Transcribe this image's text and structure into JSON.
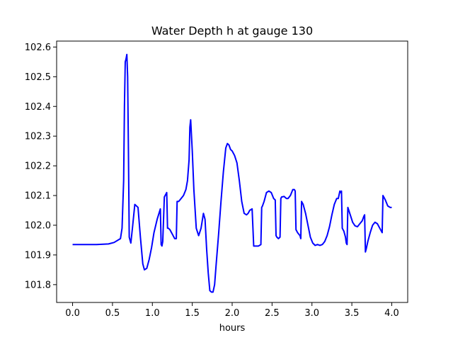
{
  "chart_data": {
    "type": "line",
    "title": "Water Depth h at gauge 130",
    "xlabel": "hours",
    "ylabel": "",
    "xlim": [
      -0.2,
      4.2
    ],
    "ylim": [
      101.74,
      102.62
    ],
    "xticks": [
      0.0,
      0.5,
      1.0,
      1.5,
      2.0,
      2.5,
      3.0,
      3.5,
      4.0
    ],
    "xtick_labels": [
      "0.0",
      "0.5",
      "1.0",
      "1.5",
      "2.0",
      "2.5",
      "3.0",
      "3.5",
      "4.0"
    ],
    "yticks": [
      101.8,
      101.9,
      102.0,
      102.1,
      102.2,
      102.3,
      102.4,
      102.5,
      102.6
    ],
    "ytick_labels": [
      "101.8",
      "101.9",
      "102.0",
      "102.1",
      "102.2",
      "102.3",
      "102.4",
      "102.5",
      "102.6"
    ],
    "grid": false,
    "legend": "none",
    "series": [
      {
        "color": "#0000ff",
        "x": [
          0.0,
          0.3,
          0.45,
          0.52,
          0.6,
          0.62,
          0.64,
          0.65,
          0.66,
          0.67,
          0.68,
          0.69,
          0.7,
          0.71,
          0.73,
          0.75,
          0.78,
          0.82,
          0.85,
          0.88,
          0.9,
          0.93,
          0.96,
          0.99,
          1.02,
          1.06,
          1.1,
          1.11,
          1.12,
          1.13,
          1.15,
          1.18,
          1.19,
          1.2,
          1.22,
          1.25,
          1.28,
          1.3,
          1.31,
          1.33,
          1.36,
          1.39,
          1.42,
          1.44,
          1.46,
          1.47,
          1.48,
          1.5,
          1.52,
          1.55,
          1.58,
          1.61,
          1.64,
          1.66,
          1.68,
          1.7,
          1.72,
          1.74,
          1.76,
          1.78,
          1.8,
          1.83,
          1.86,
          1.89,
          1.92,
          1.94,
          1.96,
          1.98,
          2.0,
          2.03,
          2.06,
          2.09,
          2.12,
          2.15,
          2.18,
          2.2,
          2.22,
          2.25,
          2.27,
          2.29,
          2.3,
          2.33,
          2.36,
          2.37,
          2.38,
          2.4,
          2.43,
          2.46,
          2.49,
          2.52,
          2.54,
          2.55,
          2.56,
          2.58,
          2.6,
          2.61,
          2.62,
          2.65,
          2.68,
          2.7,
          2.73,
          2.76,
          2.78,
          2.79,
          2.8,
          2.82,
          2.85,
          2.86,
          2.87,
          2.89,
          2.92,
          2.95,
          2.98,
          3.01,
          3.04,
          3.07,
          3.1,
          3.13,
          3.16,
          3.19,
          3.22,
          3.25,
          3.28,
          3.31,
          3.33,
          3.35,
          3.36,
          3.37,
          3.38,
          3.4,
          3.42,
          3.43,
          3.44,
          3.45,
          3.48,
          3.51,
          3.54,
          3.57,
          3.6,
          3.63,
          3.65,
          3.66,
          3.67,
          3.68,
          3.7,
          3.73,
          3.76,
          3.79,
          3.82,
          3.85,
          3.88,
          3.89,
          3.9,
          3.92,
          3.95,
          3.98,
          4.0
        ],
        "y": [
          101.935,
          101.935,
          101.937,
          101.942,
          101.955,
          101.99,
          102.15,
          102.4,
          102.55,
          102.56,
          102.575,
          102.5,
          102.25,
          101.96,
          101.94,
          101.99,
          102.07,
          102.06,
          101.96,
          101.87,
          101.85,
          101.855,
          101.885,
          101.925,
          101.975,
          102.02,
          102.055,
          101.935,
          101.93,
          101.945,
          102.095,
          102.11,
          101.99,
          101.99,
          101.985,
          101.97,
          101.955,
          101.955,
          102.08,
          102.08,
          102.09,
          102.1,
          102.12,
          102.15,
          102.22,
          102.33,
          102.355,
          102.25,
          102.12,
          101.99,
          101.965,
          101.99,
          102.04,
          102.02,
          101.92,
          101.84,
          101.78,
          101.775,
          101.775,
          101.8,
          101.87,
          101.97,
          102.08,
          102.18,
          102.26,
          102.275,
          102.27,
          102.255,
          102.25,
          102.235,
          102.21,
          102.15,
          102.08,
          102.04,
          102.035,
          102.04,
          102.05,
          102.055,
          101.93,
          101.93,
          101.93,
          101.93,
          101.935,
          102.06,
          102.065,
          102.08,
          102.11,
          102.115,
          102.11,
          102.09,
          102.085,
          101.965,
          101.96,
          101.955,
          101.96,
          102.09,
          102.095,
          102.097,
          102.09,
          102.09,
          102.1,
          102.12,
          102.12,
          102.115,
          101.985,
          101.975,
          101.965,
          101.955,
          102.08,
          102.07,
          102.04,
          102.0,
          101.96,
          101.94,
          101.932,
          101.935,
          101.932,
          101.935,
          101.945,
          101.965,
          101.995,
          102.035,
          102.07,
          102.09,
          102.09,
          102.115,
          102.11,
          102.115,
          101.99,
          101.98,
          101.96,
          101.94,
          101.935,
          102.06,
          102.035,
          102.01,
          101.998,
          101.995,
          102.005,
          102.015,
          102.03,
          102.035,
          101.91,
          101.92,
          101.945,
          101.975,
          102.0,
          102.01,
          102.005,
          101.99,
          101.975,
          102.1,
          102.095,
          102.085,
          102.065,
          102.06,
          102.06
        ]
      }
    ]
  }
}
